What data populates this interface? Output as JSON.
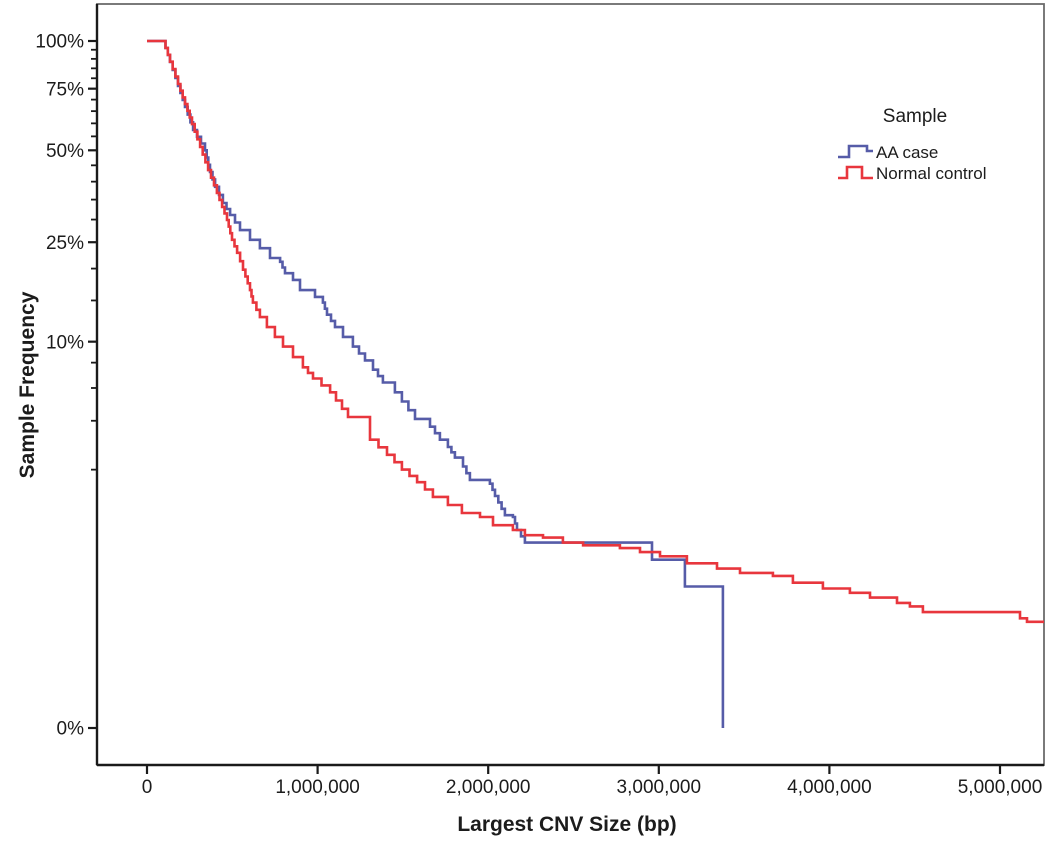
{
  "chart_data": {
    "type": "line",
    "subtype": "step-survival-curve",
    "title": "",
    "xlabel": "Largest CNV Size (bp)",
    "ylabel": "Sample Frequency",
    "legend_title": "Sample",
    "legend_position": "upper-right-inside",
    "grid": false,
    "x_range_bp": [
      0,
      5258000
    ],
    "y_range_pct": [
      0,
      100
    ],
    "y_scale": {
      "type": "power",
      "exponent": 0.25,
      "note": "fourth-root percent axis"
    },
    "x_ticks": [
      {
        "value": 0,
        "label": "0"
      },
      {
        "value": 1000000,
        "label": "1,000,000"
      },
      {
        "value": 2000000,
        "label": "2,000,000"
      },
      {
        "value": 3000000,
        "label": "3,000,000"
      },
      {
        "value": 4000000,
        "label": "4,000,000"
      },
      {
        "value": 5000000,
        "label": "5,000,000"
      }
    ],
    "y_ticks_major": [
      {
        "value": 100,
        "label": "100%"
      },
      {
        "value": 75,
        "label": "75%"
      },
      {
        "value": 50,
        "label": "50%"
      },
      {
        "value": 25,
        "label": "25%"
      },
      {
        "value": 10,
        "label": "10%"
      },
      {
        "value": 0,
        "label": "0%"
      }
    ],
    "y_ticks_minor": [
      95,
      90,
      85,
      80,
      70,
      65,
      60,
      55,
      45,
      40,
      35,
      30,
      20,
      15,
      8,
      6,
      4,
      2
    ],
    "colors": {
      "axis": "#1a1a1a",
      "plot_border": "#6b6b6b",
      "background": "#ffffff"
    },
    "series": [
      {
        "name": "AA case",
        "color": "#565CA8",
        "points": [
          [
            0,
            100
          ],
          [
            95000,
            100
          ],
          [
            135000,
            88.4
          ],
          [
            182000,
            76.3
          ],
          [
            223000,
            66.8
          ],
          [
            270000,
            57.4
          ],
          [
            340000,
            50
          ],
          [
            369000,
            42.9
          ],
          [
            399000,
            38.5
          ],
          [
            445000,
            34.1
          ],
          [
            487000,
            31.1
          ],
          [
            545000,
            27.6
          ],
          [
            604000,
            25.5
          ],
          [
            662000,
            23.8
          ],
          [
            721000,
            21.9
          ],
          [
            780000,
            21.2
          ],
          [
            809000,
            19.2
          ],
          [
            856000,
            18.1
          ],
          [
            897000,
            16.5
          ],
          [
            985000,
            15.5
          ],
          [
            1031000,
            14.7
          ],
          [
            1055000,
            13.1
          ],
          [
            1102000,
            11.6
          ],
          [
            1149000,
            10.5
          ],
          [
            1207000,
            9.5
          ],
          [
            1278000,
            8.2
          ],
          [
            1325000,
            7.4
          ],
          [
            1383000,
            6.4
          ],
          [
            1453000,
            5.7
          ],
          [
            1494000,
            5.1
          ],
          [
            1571000,
            4.1
          ],
          [
            1659000,
            3.7
          ],
          [
            1717000,
            3.1
          ],
          [
            1764000,
            2.8
          ],
          [
            1805000,
            2.4
          ],
          [
            1852000,
            2.1
          ],
          [
            1893000,
            1.7
          ],
          [
            2010000,
            1.6
          ],
          [
            2040000,
            1.3
          ],
          [
            2098000,
            0.92
          ],
          [
            2145000,
            0.89
          ],
          [
            2169000,
            0.69
          ],
          [
            2215000,
            0.53
          ],
          [
            2960000,
            0.36
          ],
          [
            3153000,
            0.18
          ],
          [
            3376000,
            0
          ]
        ]
      },
      {
        "name": "Normal control",
        "color": "#E8363D",
        "points": [
          [
            0,
            100
          ],
          [
            95000,
            100
          ],
          [
            135000,
            88.5
          ],
          [
            182000,
            77.2
          ],
          [
            223000,
            68.0
          ],
          [
            264000,
            59.7
          ],
          [
            311000,
            51.2
          ],
          [
            358000,
            43.5
          ],
          [
            410000,
            36.8
          ],
          [
            440000,
            33.1
          ],
          [
            469000,
            29.9
          ],
          [
            498000,
            25.5
          ],
          [
            528000,
            22.9
          ],
          [
            563000,
            19.8
          ],
          [
            604000,
            16.5
          ],
          [
            621000,
            14.7
          ],
          [
            662000,
            12.8
          ],
          [
            703000,
            11.6
          ],
          [
            750000,
            10.5
          ],
          [
            797000,
            9.5
          ],
          [
            856000,
            8.5
          ],
          [
            914000,
            7.6
          ],
          [
            973000,
            6.7
          ],
          [
            1073000,
            5.7
          ],
          [
            1178000,
            4.2
          ],
          [
            1307000,
            3.1
          ],
          [
            1407000,
            2.5
          ],
          [
            1494000,
            2.0
          ],
          [
            1583000,
            1.64
          ],
          [
            1676000,
            1.28
          ],
          [
            1764000,
            1.11
          ],
          [
            1846000,
            0.96
          ],
          [
            1952000,
            0.89
          ],
          [
            2028000,
            0.76
          ],
          [
            2145000,
            0.69
          ],
          [
            2215000,
            0.62
          ],
          [
            2321000,
            0.59
          ],
          [
            2438000,
            0.53
          ],
          [
            2556000,
            0.5
          ],
          [
            2772000,
            0.47
          ],
          [
            2890000,
            0.43
          ],
          [
            3007000,
            0.39
          ],
          [
            3165000,
            0.33
          ],
          [
            3341000,
            0.29
          ],
          [
            3476000,
            0.26
          ],
          [
            3669000,
            0.24
          ],
          [
            3786000,
            0.2
          ],
          [
            3962000,
            0.17
          ],
          [
            4120000,
            0.15
          ],
          [
            4238000,
            0.13
          ],
          [
            4396000,
            0.11
          ],
          [
            4472000,
            0.098
          ],
          [
            4548000,
            0.081
          ],
          [
            5058000,
            0.081
          ],
          [
            5117000,
            0.065
          ],
          [
            5158000,
            0.057
          ],
          [
            5275000,
            0.055
          ]
        ]
      }
    ]
  }
}
